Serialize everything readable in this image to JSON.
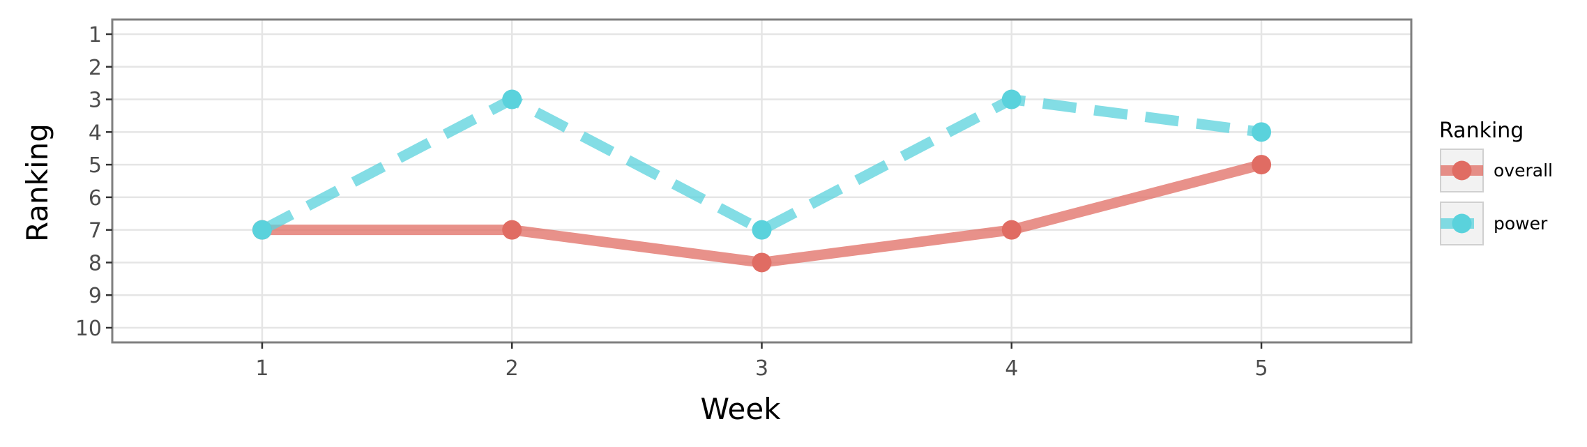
{
  "chart_data": {
    "type": "line",
    "xlabel": "Week",
    "ylabel": "Ranking",
    "x": [
      1,
      2,
      3,
      4,
      5
    ],
    "x_ticks": [
      "1",
      "2",
      "3",
      "4",
      "5"
    ],
    "xlim": [
      0.4,
      5.6
    ],
    "y_ticks": [
      "1",
      "2",
      "3",
      "4",
      "5",
      "6",
      "7",
      "8",
      "9",
      "10"
    ],
    "ylim": [
      1,
      10
    ],
    "y_reversed": true,
    "grid": true,
    "legend": {
      "title": "Ranking",
      "position": "right"
    },
    "series": [
      {
        "name": "overall",
        "values": [
          7,
          7,
          8,
          7,
          5
        ],
        "color": "#e06c63",
        "style": "solid"
      },
      {
        "name": "power",
        "values": [
          7,
          3,
          7,
          3,
          4
        ],
        "color": "#5ad2dc",
        "style": "dashed"
      }
    ]
  }
}
